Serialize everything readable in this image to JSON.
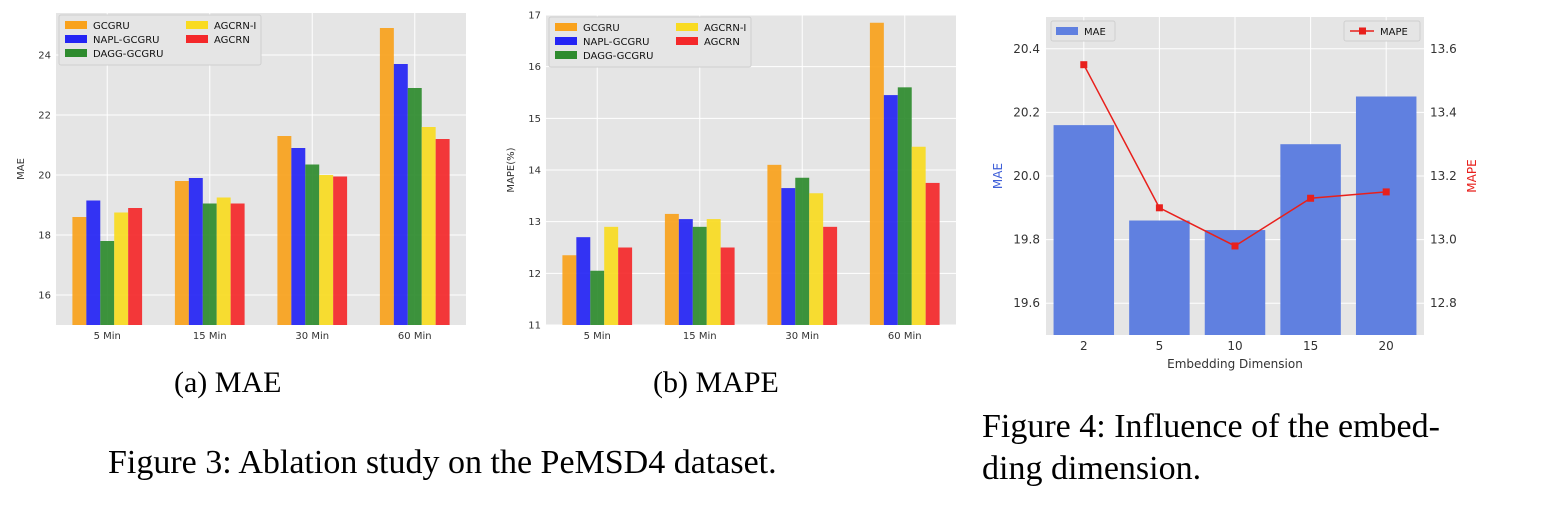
{
  "chart_data": [
    {
      "type": "bar",
      "panel_caption": "(a) MAE",
      "categories": [
        "5 Min",
        "15 Min",
        "30 Min",
        "60 Min"
      ],
      "series": [
        {
          "name": "GCGRU",
          "color": "#F9A21C",
          "values": [
            18.6,
            19.8,
            21.3,
            24.9
          ]
        },
        {
          "name": "NAPL-GCGRU",
          "color": "#2424F4",
          "values": [
            19.15,
            19.9,
            20.9,
            23.7
          ]
        },
        {
          "name": "DAGG-GCGRU",
          "color": "#2E8B2E",
          "values": [
            17.8,
            19.05,
            20.35,
            22.9
          ]
        },
        {
          "name": "AGCRN-I",
          "color": "#F9DB21",
          "values": [
            18.75,
            19.25,
            20.0,
            21.6
          ]
        },
        {
          "name": "AGCRN",
          "color": "#F4282A",
          "values": [
            18.9,
            19.05,
            19.95,
            21.2
          ]
        }
      ],
      "ylabel": "MAE",
      "xlabel": "",
      "ylim": [
        15.0,
        25.4
      ],
      "yticks": [
        16,
        18,
        20,
        22,
        24
      ],
      "legend_position": "top-left"
    },
    {
      "type": "bar",
      "panel_caption": "(b) MAPE",
      "categories": [
        "5 Min",
        "15 Min",
        "30 Min",
        "60 Min"
      ],
      "series": [
        {
          "name": "GCGRU",
          "color": "#F9A21C",
          "values": [
            12.35,
            13.15,
            14.1,
            16.85
          ]
        },
        {
          "name": "NAPL-GCGRU",
          "color": "#2424F4",
          "values": [
            12.7,
            13.05,
            13.65,
            15.45
          ]
        },
        {
          "name": "DAGG-GCGRU",
          "color": "#2E8B2E",
          "values": [
            12.05,
            12.9,
            13.85,
            15.6
          ]
        },
        {
          "name": "AGCRN-I",
          "color": "#F9DB21",
          "values": [
            12.9,
            13.05,
            13.55,
            14.45
          ]
        },
        {
          "name": "AGCRN",
          "color": "#F4282A",
          "values": [
            12.5,
            12.5,
            12.9,
            13.75
          ]
        }
      ],
      "ylabel": "MAPE(%)",
      "xlabel": "",
      "ylim": [
        11,
        17
      ],
      "yticks": [
        11,
        12,
        13,
        14,
        15,
        16,
        17
      ],
      "legend_position": "top-left"
    },
    {
      "type": "bar+line",
      "categories": [
        "2",
        "5",
        "10",
        "15",
        "20"
      ],
      "bar_series": {
        "name": "MAE",
        "color": "#6080E0",
        "values": [
          20.16,
          19.86,
          19.83,
          20.1,
          20.25
        ]
      },
      "line_series": {
        "name": "MAPE",
        "color": "#E8201C",
        "values": [
          13.55,
          13.1,
          12.98,
          13.13,
          13.15
        ]
      },
      "xlabel": "Embedding Dimension",
      "ylabel_left": "MAE",
      "ylabel_right": "MAPE",
      "ylim_left": [
        19.5,
        20.5
      ],
      "yticks_left": [
        "19.6",
        "19.8",
        "20.0",
        "20.2",
        "20.4"
      ],
      "ylim_right": [
        12.7,
        13.7
      ],
      "yticks_right": [
        "12.8",
        "13.0",
        "13.2",
        "13.4",
        "13.6"
      ],
      "legend_left_position": "top-left",
      "legend_right_position": "top-right"
    }
  ],
  "captions": {
    "figure3": "Figure 3: Ablation study on the PeMSD4 dataset.",
    "figure4_line1": "Figure 4: Influence of the embed-",
    "figure4_line2": "ding dimension."
  }
}
